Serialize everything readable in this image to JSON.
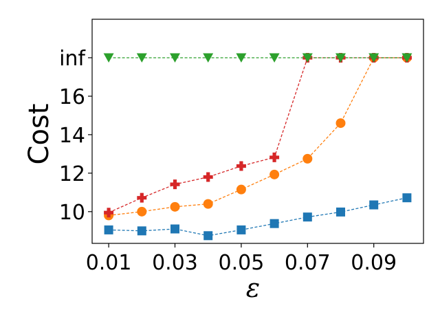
{
  "chart_data": {
    "type": "line",
    "title": "",
    "xlabel": "ε",
    "ylabel": "Cost",
    "x": [
      0.01,
      0.02,
      0.03,
      0.04,
      0.05,
      0.06,
      0.07,
      0.08,
      0.09,
      0.1
    ],
    "x_ticks": [
      "0.01",
      "0.03",
      "0.05",
      "0.07",
      "0.09"
    ],
    "y_ticks": [
      "10",
      "12",
      "14",
      "16",
      "inf"
    ],
    "xlim": [
      0.005,
      0.105
    ],
    "ylim": [
      8.35,
      20.0
    ],
    "grid": false,
    "legend": "none",
    "series": [
      {
        "color": "#1f77b4",
        "marker": "square",
        "values": [
          9.05,
          9.0,
          9.1,
          8.75,
          9.05,
          9.38,
          9.72,
          9.98,
          10.35,
          10.72
        ]
      },
      {
        "color": "#ff7f0e",
        "marker": "circle",
        "values": [
          9.8,
          10.0,
          10.25,
          10.4,
          11.15,
          11.93,
          12.75,
          14.6,
          "inf",
          "inf"
        ]
      },
      {
        "color": "#d62728",
        "marker": "plus",
        "values": [
          9.95,
          10.72,
          11.42,
          11.8,
          12.37,
          12.82,
          "inf",
          "inf",
          "inf",
          "inf"
        ]
      },
      {
        "color": "#2ca02c",
        "marker": "triangle-down",
        "values": [
          "inf",
          "inf",
          "inf",
          "inf",
          "inf",
          "inf",
          "inf",
          "inf",
          "inf",
          "inf"
        ]
      }
    ]
  }
}
